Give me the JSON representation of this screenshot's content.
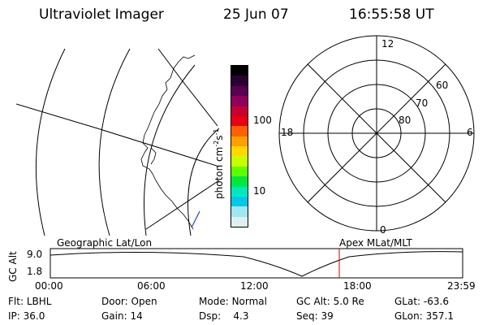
{
  "header": {
    "title": "Ultraviolet Imager",
    "date": "25 Jun 07",
    "time": "16:55:58 UT"
  },
  "colorbar": {
    "label": "photon cm",
    "label_exp1": "-2",
    "label_mid": "s",
    "label_exp2": "-1",
    "tick_high": "100",
    "tick_low": "10",
    "colors": [
      "#000000",
      "#2a0030",
      "#5a0050",
      "#90005a",
      "#c80030",
      "#e80010",
      "#ff6000",
      "#ffa000",
      "#ffd800",
      "#c8ff00",
      "#60ff00",
      "#00e840",
      "#00e8c0",
      "#00c8e8",
      "#a0e8f0",
      "#e0f0f0"
    ]
  },
  "polar_plot": {
    "mlt_labels": {
      "top": "12",
      "left": "18",
      "right": "6",
      "bottom": "0"
    },
    "lat_labels": [
      "60",
      "70",
      "80"
    ]
  },
  "timeline": {
    "axis_label": "GC Alt",
    "y_labels": [
      "9.0",
      "1.8"
    ],
    "left_caption": "Geographic Lat/Lon",
    "right_caption": "Apex MLat/MLT",
    "x_labels": [
      "00:00",
      "06:00",
      "12:00",
      "18:00",
      "23:59"
    ],
    "current_time_color": "#cc0000"
  },
  "info": {
    "filter_label": "Flt:",
    "filter_value": "LBHL",
    "ip_label": "IP:",
    "ip_value": "36.0",
    "door_label": "Door:",
    "door_value": "Open",
    "gain_label": "Gain:",
    "gain_value": "14",
    "mode_label": "Mode:",
    "mode_value": "Normal",
    "dsp_label": "Dsp:",
    "dsp_value": "4.3",
    "gcalt_label": "GC Alt:",
    "gcalt_value": "5.0 Re",
    "seq_label": "Seq:",
    "seq_value": "39",
    "glat_label": "GLat:",
    "glat_value": "-63.6",
    "glon_label": "GLon:",
    "glon_value": "357.1"
  }
}
